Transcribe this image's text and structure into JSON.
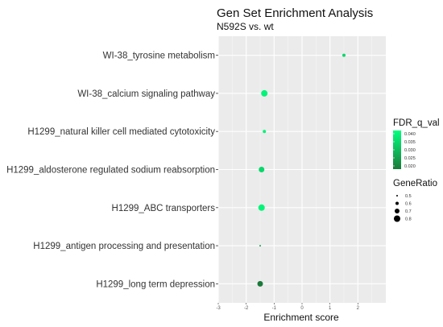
{
  "chart_data": {
    "type": "scatter",
    "title": "Gen Set Enrichment Analysis",
    "subtitle": "N592S vs. wt",
    "xlabel": "Enrichment score",
    "xlim": [
      -3,
      3
    ],
    "xticks": [
      -3,
      -2,
      -1,
      0,
      1,
      2
    ],
    "categories": [
      "WI-38_tyrosine metabolism",
      "WI-38_calcium signaling pathway",
      "H1299_natural killer cell mediated cytotoxicity",
      "H1299_aldosterone regulated sodium reabsorption",
      "H1299_ABC transporters",
      "H1299_antigen processing and presentation",
      "H1299_long term depression"
    ],
    "points": [
      {
        "category": "WI-38_tyrosine metabolism",
        "x": 1.5,
        "fdr_q_val": 0.035,
        "gene_ratio": 0.6
      },
      {
        "category": "WI-38_calcium signaling pathway",
        "x": -1.35,
        "fdr_q_val": 0.04,
        "gene_ratio": 0.8
      },
      {
        "category": "H1299_natural killer cell mediated cytotoxicity",
        "x": -1.35,
        "fdr_q_val": 0.04,
        "gene_ratio": 0.6
      },
      {
        "category": "H1299_aldosterone regulated sodium reabsorption",
        "x": -1.45,
        "fdr_q_val": 0.035,
        "gene_ratio": 0.75
      },
      {
        "category": "H1299_ABC transporters",
        "x": -1.45,
        "fdr_q_val": 0.04,
        "gene_ratio": 0.8
      },
      {
        "category": "H1299_antigen processing and presentation",
        "x": -1.5,
        "fdr_q_val": 0.025,
        "gene_ratio": 0.5
      },
      {
        "category": "H1299_long term depression",
        "x": -1.5,
        "fdr_q_val": 0.018,
        "gene_ratio": 0.75
      }
    ],
    "color_legend": {
      "title": "FDR_q_val",
      "ticks": [
        "0.040",
        "0.035",
        "0.030",
        "0.025",
        "0.020"
      ],
      "range": [
        0.018,
        0.042
      ],
      "color_low": "#1a7a3a",
      "color_high": "#00ff7f"
    },
    "size_legend": {
      "title": "GeneRatio",
      "values": [
        0.5,
        0.6,
        0.7,
        0.8
      ],
      "labels": [
        "0.5",
        "0.6",
        "0.7",
        "0.8"
      ]
    },
    "panel_background": "#ebebeb",
    "grid": true,
    "legend_position": "right"
  }
}
